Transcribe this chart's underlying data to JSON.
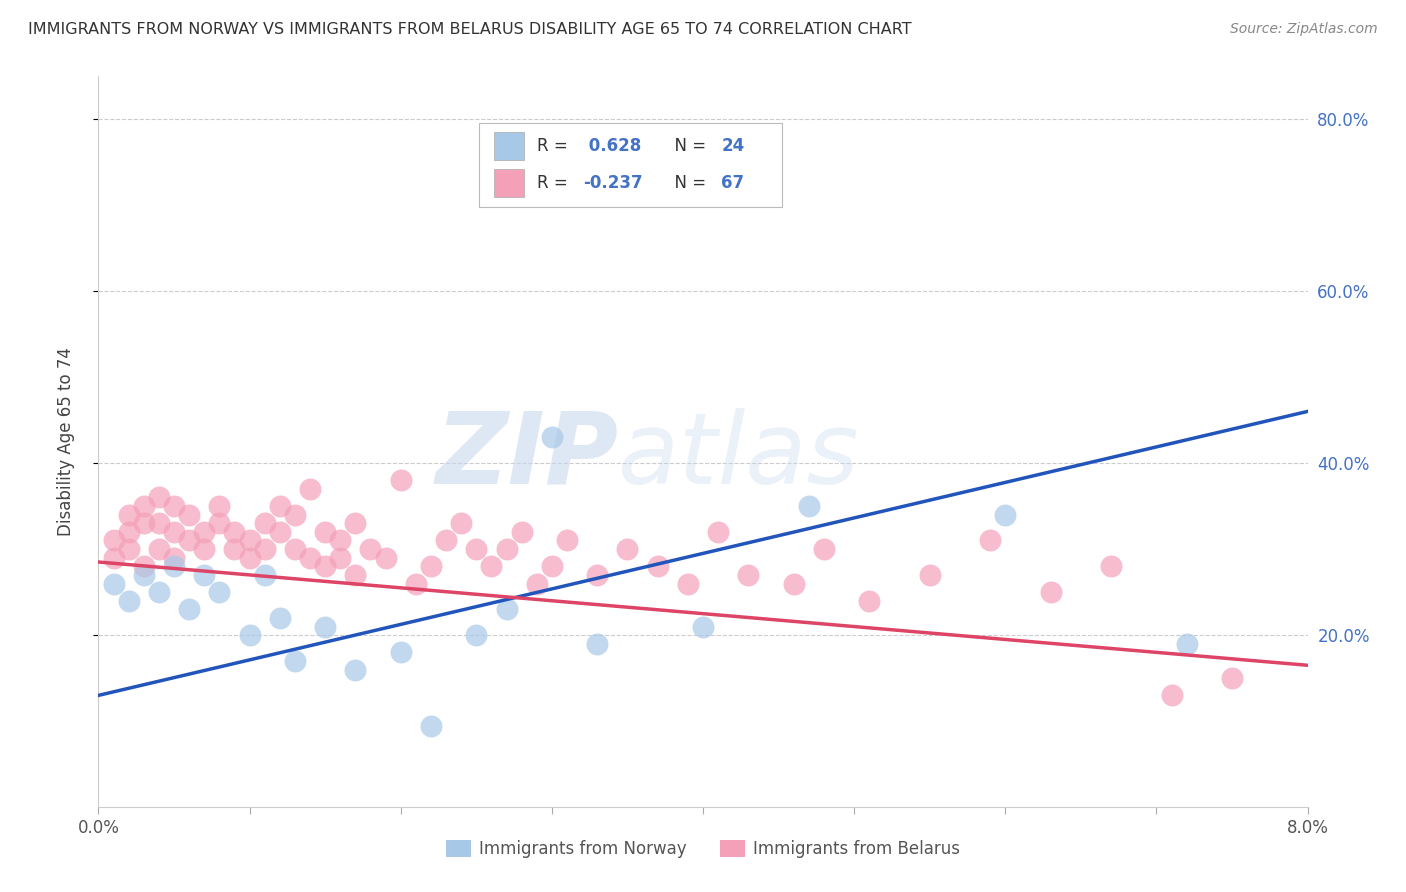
{
  "title": "IMMIGRANTS FROM NORWAY VS IMMIGRANTS FROM BELARUS DISABILITY AGE 65 TO 74 CORRELATION CHART",
  "source": "Source: ZipAtlas.com",
  "ylabel": "Disability Age 65 to 74",
  "norway_R": 0.628,
  "norway_N": 24,
  "belarus_R": -0.237,
  "belarus_N": 67,
  "norway_color": "#a8c8e8",
  "belarus_color": "#f4a0b8",
  "norway_line_color": "#2255bb",
  "belarus_line_color": "#dd4466",
  "norway_points_x": [
    0.001,
    0.002,
    0.003,
    0.004,
    0.005,
    0.006,
    0.007,
    0.008,
    0.01,
    0.011,
    0.012,
    0.013,
    0.015,
    0.017,
    0.02,
    0.022,
    0.025,
    0.027,
    0.03,
    0.033,
    0.04,
    0.047,
    0.06,
    0.072
  ],
  "norway_points_y": [
    0.26,
    0.24,
    0.27,
    0.25,
    0.28,
    0.23,
    0.27,
    0.25,
    0.2,
    0.27,
    0.22,
    0.17,
    0.21,
    0.16,
    0.18,
    0.095,
    0.2,
    0.23,
    0.43,
    0.19,
    0.21,
    0.35,
    0.34,
    0.19
  ],
  "belarus_points_x": [
    0.001,
    0.001,
    0.002,
    0.002,
    0.002,
    0.003,
    0.003,
    0.003,
    0.004,
    0.004,
    0.004,
    0.005,
    0.005,
    0.005,
    0.006,
    0.006,
    0.007,
    0.007,
    0.008,
    0.008,
    0.009,
    0.009,
    0.01,
    0.01,
    0.011,
    0.011,
    0.012,
    0.012,
    0.013,
    0.013,
    0.014,
    0.014,
    0.015,
    0.015,
    0.016,
    0.016,
    0.017,
    0.017,
    0.018,
    0.019,
    0.02,
    0.021,
    0.022,
    0.023,
    0.024,
    0.025,
    0.026,
    0.027,
    0.028,
    0.029,
    0.03,
    0.031,
    0.033,
    0.035,
    0.037,
    0.039,
    0.041,
    0.043,
    0.046,
    0.048,
    0.051,
    0.055,
    0.059,
    0.063,
    0.067,
    0.071,
    0.075
  ],
  "belarus_points_y": [
    0.29,
    0.31,
    0.3,
    0.32,
    0.34,
    0.33,
    0.35,
    0.28,
    0.36,
    0.3,
    0.33,
    0.32,
    0.29,
    0.35,
    0.31,
    0.34,
    0.32,
    0.3,
    0.35,
    0.33,
    0.3,
    0.32,
    0.29,
    0.31,
    0.33,
    0.3,
    0.32,
    0.35,
    0.34,
    0.3,
    0.37,
    0.29,
    0.32,
    0.28,
    0.31,
    0.29,
    0.33,
    0.27,
    0.3,
    0.29,
    0.38,
    0.26,
    0.28,
    0.31,
    0.33,
    0.3,
    0.28,
    0.3,
    0.32,
    0.26,
    0.28,
    0.31,
    0.27,
    0.3,
    0.28,
    0.26,
    0.32,
    0.27,
    0.26,
    0.3,
    0.24,
    0.27,
    0.31,
    0.25,
    0.28,
    0.13,
    0.15
  ],
  "norway_line_y0": 0.13,
  "norway_line_y1": 0.46,
  "belarus_line_y0": 0.285,
  "belarus_line_y1": 0.165,
  "xlim": [
    0.0,
    0.08
  ],
  "ylim": [
    0.0,
    0.85
  ],
  "x_ticks_show": [
    0.0,
    0.08
  ],
  "y_ticks": [
    0.2,
    0.4,
    0.6,
    0.8
  ],
  "y_tick_labels": [
    "20.0%",
    "40.0%",
    "60.0%",
    "80.0%"
  ],
  "watermark_zip": "ZIP",
  "watermark_atlas": "atlas",
  "legend_norway_label": "Immigrants from Norway",
  "legend_belarus_label": "Immigrants from Belarus",
  "background_color": "#ffffff",
  "grid_color": "#cccccc",
  "legend_box_color": "#f0f4fa"
}
